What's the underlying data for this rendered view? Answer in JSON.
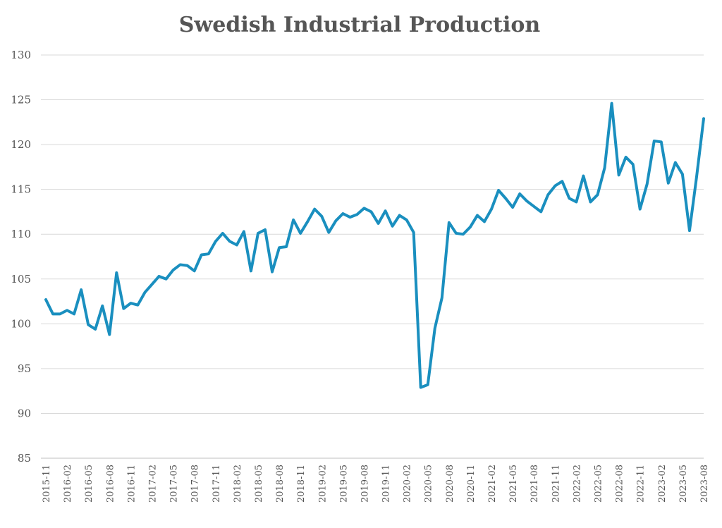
{
  "chart_data": {
    "type": "line",
    "title": "Swedish Industrial Production",
    "xlabel": "",
    "ylabel": "",
    "ylim": [
      85,
      130
    ],
    "yticks": [
      85,
      90,
      95,
      100,
      105,
      110,
      115,
      120,
      125,
      130
    ],
    "grid": true,
    "legend": "none",
    "x_tick_labels": [
      "2015-11",
      "2016-02",
      "2016-05",
      "2016-08",
      "2016-11",
      "2017-02",
      "2017-05",
      "2017-08",
      "2017-11",
      "2018-02",
      "2018-05",
      "2018-08",
      "2018-11",
      "2019-02",
      "2019-05",
      "2019-08",
      "2019-11",
      "2020-02",
      "2020-05",
      "2020-08",
      "2020-11",
      "2021-02",
      "2021-05",
      "2021-08",
      "2021-11",
      "2022-02",
      "2022-05",
      "2022-08",
      "2022-11",
      "2023-02",
      "2023-05",
      "2023-08"
    ],
    "x": [
      "2015-11",
      "2015-12",
      "2016-01",
      "2016-02",
      "2016-03",
      "2016-04",
      "2016-05",
      "2016-06",
      "2016-07",
      "2016-08",
      "2016-09",
      "2016-10",
      "2016-11",
      "2016-12",
      "2017-01",
      "2017-02",
      "2017-03",
      "2017-04",
      "2017-05",
      "2017-06",
      "2017-07",
      "2017-08",
      "2017-09",
      "2017-10",
      "2017-11",
      "2017-12",
      "2018-01",
      "2018-02",
      "2018-03",
      "2018-04",
      "2018-05",
      "2018-06",
      "2018-07",
      "2018-08",
      "2018-09",
      "2018-10",
      "2018-11",
      "2018-12",
      "2019-01",
      "2019-02",
      "2019-03",
      "2019-04",
      "2019-05",
      "2019-06",
      "2019-07",
      "2019-08",
      "2019-09",
      "2019-10",
      "2019-11",
      "2019-12",
      "2020-01",
      "2020-02",
      "2020-03",
      "2020-04",
      "2020-05",
      "2020-06",
      "2020-07",
      "2020-08",
      "2020-09",
      "2020-10",
      "2020-11",
      "2020-12",
      "2021-01",
      "2021-02",
      "2021-03",
      "2021-04",
      "2021-05",
      "2021-06",
      "2021-07",
      "2021-08",
      "2021-09",
      "2021-10",
      "2021-11",
      "2021-12",
      "2022-01",
      "2022-02",
      "2022-03",
      "2022-04",
      "2022-05",
      "2022-06",
      "2022-07",
      "2022-08",
      "2022-09",
      "2022-10",
      "2022-11",
      "2022-12",
      "2023-01",
      "2023-02",
      "2023-03",
      "2023-04",
      "2023-05",
      "2023-06",
      "2023-07",
      "2023-08"
    ],
    "series": [
      {
        "values": [
          102.7,
          101.1,
          101.1,
          101.5,
          101.1,
          103.8,
          99.9,
          99.4,
          102.0,
          98.8,
          105.7,
          101.7,
          102.3,
          102.1,
          103.5,
          104.4,
          105.3,
          105.0,
          106.0,
          106.6,
          106.5,
          105.9,
          107.7,
          107.8,
          109.2,
          110.1,
          109.2,
          108.8,
          110.3,
          105.9,
          110.1,
          110.5,
          105.8,
          108.5,
          108.6,
          111.6,
          110.1,
          111.4,
          112.8,
          112.0,
          110.2,
          111.5,
          112.3,
          111.9,
          112.2,
          112.9,
          112.5,
          111.2,
          112.6,
          110.9,
          112.1,
          111.6,
          110.2,
          92.9,
          93.2,
          99.5,
          102.9,
          111.3,
          110.1,
          110.0,
          110.8,
          112.1,
          111.4,
          112.8,
          114.9,
          114.0,
          113.0,
          114.5,
          113.7,
          113.1,
          112.5,
          114.4,
          115.4,
          115.9,
          114.0,
          113.6,
          116.5,
          113.6,
          114.4,
          117.4,
          124.6,
          116.6,
          118.6,
          117.8,
          112.8,
          115.6,
          120.4,
          120.3,
          115.7,
          118.0,
          116.7,
          110.4,
          116.4,
          122.9
        ],
        "color": "#1a8fbf"
      }
    ]
  }
}
